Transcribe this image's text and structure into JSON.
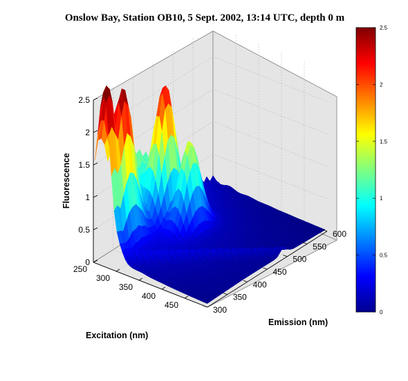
{
  "chart_data": {
    "type": "surface",
    "title": "Onslow Bay, Station OB10, 5 Sept. 2002, 13:14 UTC, depth 0 m",
    "xlabel": "Excitation (nm)",
    "ylabel": "Emission (nm)",
    "zlabel": "Fluorescence",
    "xlim": [
      250,
      500
    ],
    "ylim": [
      300,
      600
    ],
    "zlim": [
      0,
      2.5
    ],
    "x_ticks": [
      "250",
      "300",
      "350",
      "400",
      "450"
    ],
    "y_ticks": [
      "300",
      "350",
      "400",
      "450",
      "500",
      "550",
      "600"
    ],
    "z_ticks": [
      "0",
      "0.5",
      "1",
      "1.5",
      "2",
      "2.5"
    ],
    "colorbar": {
      "range": [
        0,
        2.5
      ],
      "ticks": [
        "0",
        "0.5",
        "1",
        "1.5",
        "2",
        "2.5"
      ],
      "colormap": "jet"
    },
    "grid": true,
    "peaks": [
      {
        "excitation": 270,
        "emission": 310,
        "fluorescence": 2.3
      },
      {
        "excitation": 275,
        "emission": 345,
        "fluorescence": 2.1
      },
      {
        "excitation": 285,
        "emission": 440,
        "fluorescence": 1.9
      },
      {
        "excitation": 330,
        "emission": 450,
        "fluorescence": 1.3
      }
    ],
    "edge_profile_excitation_250": {
      "emission": [
        300,
        320,
        340,
        360,
        380,
        400,
        420,
        440,
        460,
        480,
        500,
        520
      ],
      "fluorescence": [
        0.88,
        1.5,
        1.2,
        1.85,
        1.7,
        1.6,
        1.3,
        1.0,
        0.8,
        0.6,
        0.35,
        0.15
      ]
    }
  }
}
